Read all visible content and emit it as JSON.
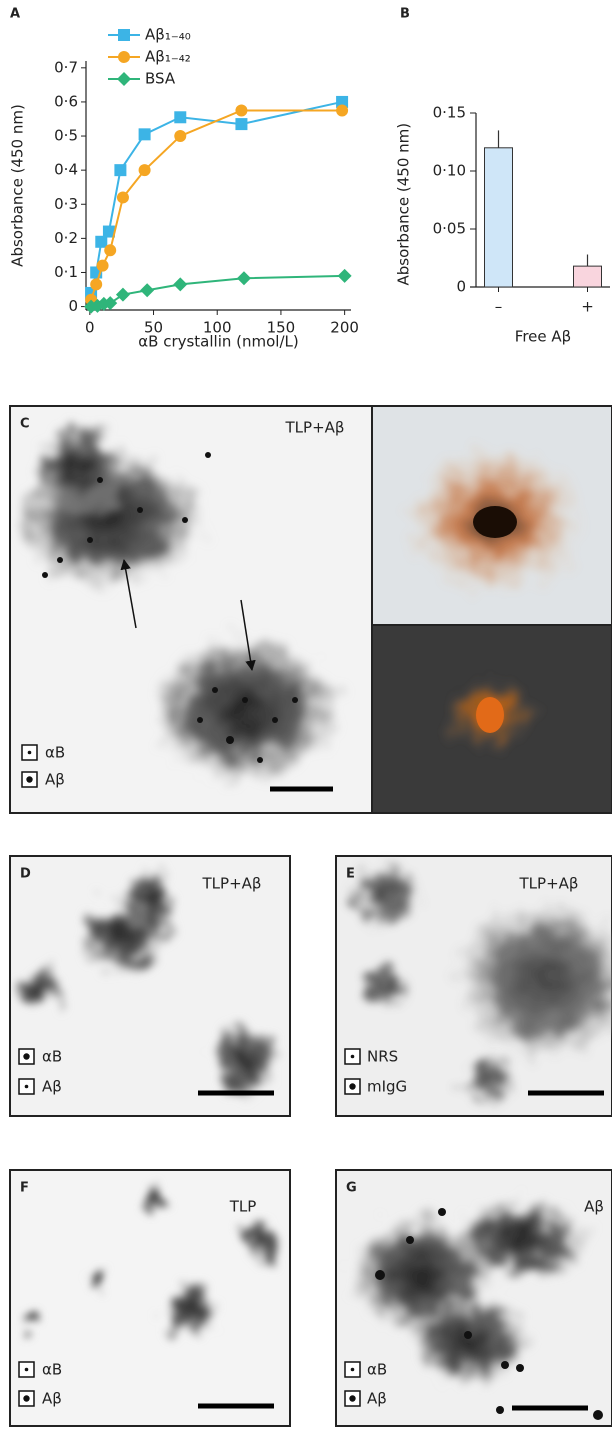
{
  "chart_data": [
    {
      "type": "line",
      "label": "A",
      "xlabel": "αB crystallin (nmol/L)",
      "ylabel": "Absorbance (450 nm)",
      "xlim": [
        -3,
        205
      ],
      "ylim": [
        -0.01,
        0.72
      ],
      "xticks": [
        0,
        50,
        100,
        150,
        200
      ],
      "yticks": [
        0,
        {
          "value": 0.1,
          "label": "0·1"
        },
        {
          "value": 0.2,
          "label": "0·2"
        },
        {
          "value": 0.3,
          "label": "0·3"
        },
        {
          "value": 0.4,
          "label": "0·4"
        },
        {
          "value": 0.5,
          "label": "0·5"
        },
        {
          "value": 0.6,
          "label": "0·6"
        },
        {
          "value": 0.7,
          "label": "0·7"
        }
      ],
      "series": [
        {
          "name": "Aβ₁₋₄₀",
          "color": "#3cb4e6",
          "marker": "square",
          "x": [
            1,
            5,
            9,
            15,
            24,
            43,
            71,
            119,
            198
          ],
          "values": [
            0.04,
            0.1,
            0.19,
            0.22,
            0.4,
            0.505,
            0.555,
            0.535,
            0.6
          ]
        },
        {
          "name": "Aβ₁₋₄₂",
          "color": "#f5a623",
          "marker": "circle",
          "x": [
            1,
            5,
            10,
            16,
            26,
            43,
            71,
            119,
            198
          ],
          "values": [
            0.02,
            0.065,
            0.12,
            0.165,
            0.32,
            0.4,
            0.5,
            0.575,
            0.575
          ]
        },
        {
          "name": "BSA",
          "color": "#2fb57a",
          "marker": "diamond",
          "x": [
            1,
            6,
            11,
            16,
            26,
            45,
            71,
            121,
            200
          ],
          "values": [
            0,
            0.002,
            0.008,
            0.01,
            0.035,
            0.048,
            0.065,
            0.083,
            0.09
          ]
        }
      ]
    },
    {
      "type": "bar",
      "label": "B",
      "xlabel": "Free Aβ",
      "ylabel": "Absorbance (450 nm)",
      "categories": [
        "–",
        "+"
      ],
      "values": [
        0.12,
        0.018
      ],
      "errors": [
        0.015,
        0.01
      ],
      "colors": [
        "#cfe6f8",
        "#f9d5de"
      ],
      "ylim": [
        0,
        0.16
      ],
      "yticks": [
        0,
        {
          "value": 0.05,
          "label": "0·05"
        },
        {
          "value": 0.1,
          "label": "0·10"
        },
        {
          "value": 0.15,
          "label": "0·15"
        }
      ]
    }
  ],
  "panels": [
    {
      "label": "C",
      "title": "TLP+Aβ",
      "legend": [
        "αB",
        "Aβ"
      ]
    },
    {
      "label": "D",
      "title": "TLP+Aβ",
      "legend": [
        "αB",
        "Aβ"
      ]
    },
    {
      "label": "E",
      "title": "TLP+Aβ",
      "legend": [
        "NRS",
        "mIgG"
      ]
    },
    {
      "label": "F",
      "title": "TLP",
      "legend": [
        "αB",
        "Aβ"
      ]
    },
    {
      "label": "G",
      "title": "Aβ",
      "legend": [
        "αB",
        "Aβ"
      ]
    }
  ]
}
